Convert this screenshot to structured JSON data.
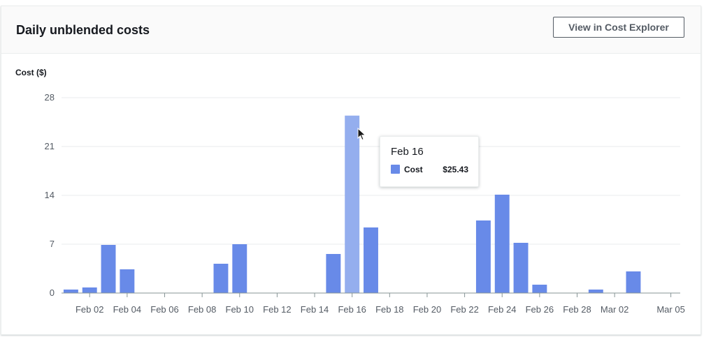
{
  "panel": {
    "title": "Daily unblended costs",
    "button_label": "View in Cost Explorer"
  },
  "chart_data": {
    "type": "bar",
    "title": "Daily unblended costs",
    "ylabel": "Cost ($)",
    "xlabel": "",
    "ylim": [
      0,
      28
    ],
    "yticks": [
      0,
      7,
      14,
      21,
      28
    ],
    "grid": true,
    "categories": [
      "Feb 01",
      "Feb 02",
      "Feb 03",
      "Feb 04",
      "Feb 05",
      "Feb 06",
      "Feb 07",
      "Feb 08",
      "Feb 09",
      "Feb 10",
      "Feb 11",
      "Feb 12",
      "Feb 13",
      "Feb 14",
      "Feb 15",
      "Feb 16",
      "Feb 17",
      "Feb 18",
      "Feb 19",
      "Feb 20",
      "Feb 21",
      "Feb 22",
      "Feb 23",
      "Feb 24",
      "Feb 25",
      "Feb 26",
      "Feb 27",
      "Feb 28",
      "Mar 01",
      "Mar 02",
      "Mar 03",
      "Mar 04",
      "Mar 05"
    ],
    "xtick_labels": [
      "Feb 02",
      "Feb 04",
      "Feb 06",
      "Feb 08",
      "Feb 10",
      "Feb 12",
      "Feb 14",
      "Feb 16",
      "Feb 18",
      "Feb 20",
      "Feb 22",
      "Feb 24",
      "Feb 26",
      "Feb 28",
      "Mar 02",
      "Mar 05"
    ],
    "series": [
      {
        "name": "Cost",
        "color": "#688ae8",
        "values": [
          0.5,
          0.8,
          6.9,
          3.4,
          0,
          0,
          0,
          0,
          4.2,
          7.0,
          0,
          0,
          0,
          0,
          5.6,
          25.43,
          9.4,
          0,
          0,
          0,
          0,
          0,
          10.4,
          14.1,
          7.2,
          1.2,
          0,
          0,
          0.5,
          0,
          3.1,
          0,
          0
        ]
      }
    ],
    "highlight_index": 15,
    "highlight_color": "#94aeee",
    "tooltip": {
      "date": "Feb 16",
      "label": "Cost",
      "value": "$25.43"
    }
  }
}
